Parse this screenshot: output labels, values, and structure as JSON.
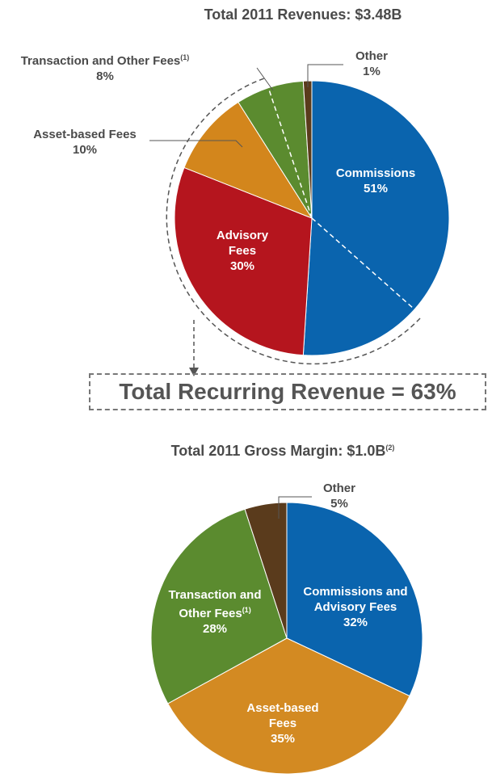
{
  "chart_data": [
    {
      "type": "pie",
      "title": "Total 2011 Revenues: $3.48B",
      "categories": [
        "Commissions",
        "Advisory Fees",
        "Asset-based Fees",
        "Transaction and Other Fees",
        "Other"
      ],
      "label_superscripts": [
        null,
        null,
        null,
        "(1)",
        null
      ],
      "values": [
        51,
        30,
        10,
        8,
        1
      ],
      "value_labels": [
        "51%",
        "30%",
        "10%",
        "8%",
        "1%"
      ],
      "colors": [
        "#0a64ae",
        "#b5151e",
        "#d3861c",
        "#5b8b2f",
        "#5a3b1c"
      ],
      "annotation": "Total Recurring Revenue = 63%"
    },
    {
      "type": "pie",
      "title": "Total 2011 Gross Margin: $1.0B",
      "title_superscript": "(2)",
      "categories": [
        "Commissions and Advisory Fees",
        "Asset-based Fees",
        "Transaction and Other Fees",
        "Other"
      ],
      "label_superscripts": [
        null,
        null,
        "(1)",
        null
      ],
      "values": [
        32,
        35,
        28,
        5
      ],
      "value_labels": [
        "32%",
        "35%",
        "28%",
        "5%"
      ],
      "colors": [
        "#0a64ae",
        "#d38a22",
        "#5b8b2f",
        "#5a3b1c"
      ]
    }
  ]
}
